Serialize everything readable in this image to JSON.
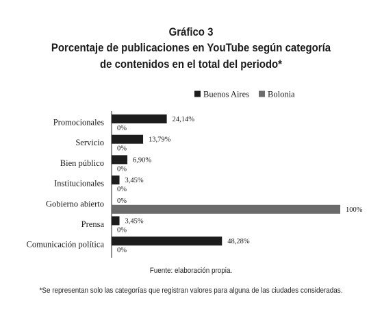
{
  "header": {
    "line1": "Gráfico 3",
    "line2": "Porcentaje de publicaciones en YouTube según categoría",
    "line3": "de contenidos en el total del periodo*"
  },
  "chart_data": {
    "type": "bar",
    "orientation": "horizontal",
    "categories": [
      "Promocionales",
      "Servicio",
      "Bien público",
      "Institucionales",
      "Gobierno abierto",
      "Prensa",
      "Comunicación política"
    ],
    "series": [
      {
        "name": "Buenos Aires",
        "values": [
          24.14,
          13.79,
          6.9,
          3.45,
          0,
          3.45,
          48.28
        ],
        "labels": [
          "24,14%",
          "13,79%",
          "6,90%",
          "3,45%",
          "0%",
          "3,45%",
          "48,28%"
        ],
        "color": "#1c1c1c"
      },
      {
        "name": "Bolonia",
        "values": [
          0,
          0,
          0,
          0,
          100,
          0,
          0
        ],
        "labels": [
          "0%",
          "0%",
          "0%",
          "0%",
          "100%",
          "0%",
          "0%"
        ],
        "color": "#6b6b6b"
      }
    ],
    "xlim": [
      0,
      100
    ],
    "grid": false,
    "legend_position": "top-right"
  },
  "footer": {
    "source": "Fuente: elaboración propia.",
    "note": "*Se representan solo las categorías que registran valores para alguna de las ciudades consideradas."
  }
}
